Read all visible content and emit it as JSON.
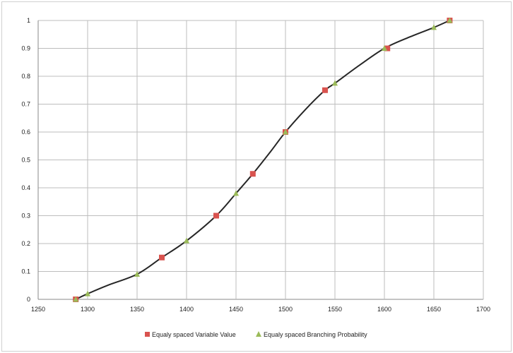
{
  "chart_data": {
    "type": "scatter",
    "title": "",
    "xlabel": "",
    "ylabel": "",
    "xlim": [
      1250,
      1700
    ],
    "ylim": [
      0,
      1
    ],
    "x_ticks": [
      1250,
      1300,
      1350,
      1400,
      1450,
      1500,
      1550,
      1600,
      1650,
      1700
    ],
    "y_ticks": [
      0,
      0.1,
      0.2,
      0.3,
      0.4,
      0.5,
      0.6,
      0.7,
      0.8,
      0.9,
      1
    ],
    "grid": true,
    "legend_position": "bottom",
    "curve": {
      "color": "#262626",
      "x": [
        1288,
        1300,
        1320,
        1350,
        1375,
        1400,
        1430,
        1450,
        1467,
        1485,
        1500,
        1520,
        1540,
        1550,
        1575,
        1600,
        1625,
        1650,
        1666
      ],
      "y": [
        0,
        0.02,
        0.05,
        0.09,
        0.15,
        0.21,
        0.3,
        0.38,
        0.45,
        0.53,
        0.6,
        0.68,
        0.75,
        0.775,
        0.84,
        0.9,
        0.94,
        0.975,
        1.0
      ]
    },
    "series": [
      {
        "name": "Equaly spaced Variable Value",
        "marker": "square",
        "color": "#d9534f",
        "x": [
          1288,
          1375,
          1430,
          1467,
          1500,
          1540,
          1603,
          1666
        ],
        "y": [
          0,
          0.15,
          0.3,
          0.45,
          0.6,
          0.75,
          0.9,
          1.0
        ]
      },
      {
        "name": "Equaly spaced Branching Probability",
        "marker": "triangle",
        "color": "#9bbb59",
        "x": [
          1288,
          1300,
          1350,
          1400,
          1450,
          1500,
          1550,
          1600,
          1650,
          1666
        ],
        "y": [
          0,
          0.02,
          0.09,
          0.21,
          0.38,
          0.6,
          0.775,
          0.9,
          0.975,
          1.0
        ]
      }
    ]
  }
}
